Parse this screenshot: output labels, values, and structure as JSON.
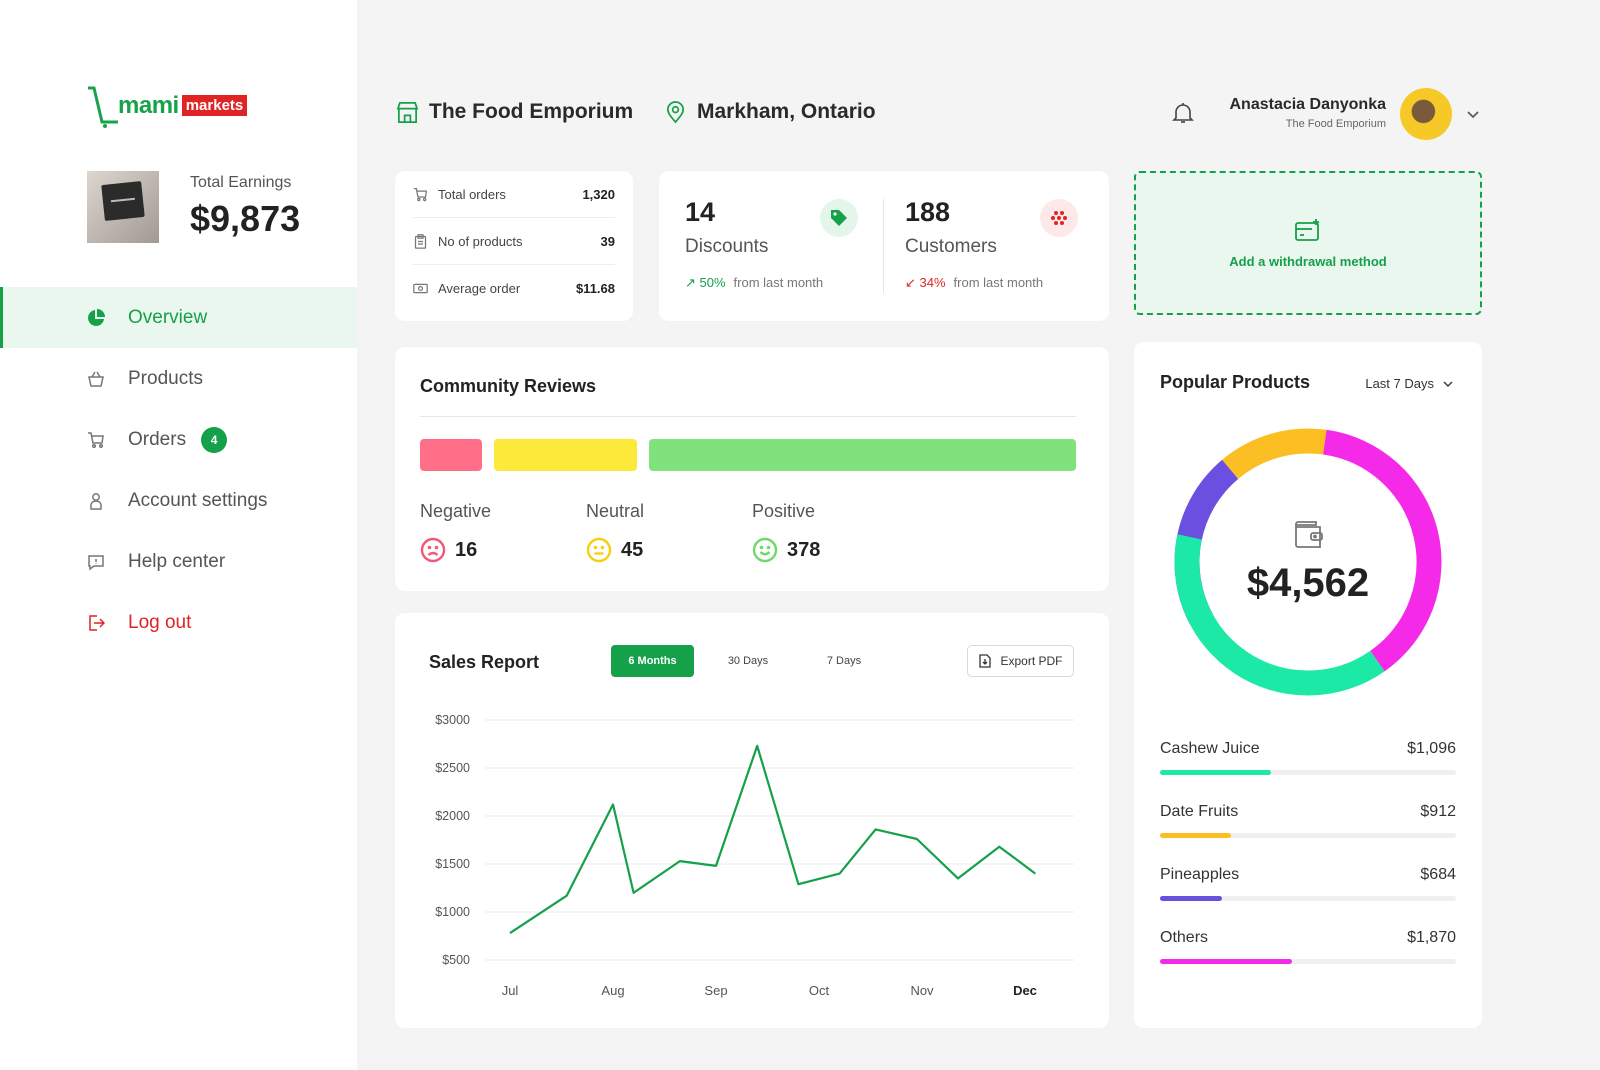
{
  "brand": {
    "part1": "mami",
    "part2": "markets"
  },
  "earnings": {
    "label": "Total Earnings",
    "value": "$9,873"
  },
  "nav": [
    {
      "label": "Overview",
      "icon": "pie-chart-icon",
      "active": true
    },
    {
      "label": "Products",
      "icon": "basket-icon"
    },
    {
      "label": "Orders",
      "icon": "cart-icon",
      "badge": "4"
    },
    {
      "label": "Account settings",
      "icon": "user-icon"
    },
    {
      "label": "Help center",
      "icon": "help-chat-icon"
    },
    {
      "label": "Log out",
      "icon": "logout-icon"
    }
  ],
  "header": {
    "store": "The Food Emporium",
    "location": "Markham, Ontario",
    "user_name": "Anastacia Danyonka",
    "user_store": "The Food Emporium"
  },
  "stats": [
    {
      "label": "Total orders",
      "value": "1,320",
      "icon": "cart-icon"
    },
    {
      "label": "No of products",
      "value": "39",
      "icon": "clipboard-icon"
    },
    {
      "label": "Average order",
      "value": "$11.68",
      "icon": "cash-icon"
    }
  ],
  "kpis": [
    {
      "value": "14",
      "label": "Discounts",
      "trend": "50%",
      "trend_dir": "up",
      "trend_text": "from last month",
      "icon": "tag-icon",
      "color": "#15a04a"
    },
    {
      "value": "188",
      "label": "Customers",
      "trend": "34%",
      "trend_dir": "down",
      "trend_text": "from last month",
      "icon": "dots-icon",
      "color": "#e02424"
    }
  ],
  "withdraw": {
    "label": "Add a withdrawal method"
  },
  "reviews": {
    "title": "Community Reviews",
    "items": [
      {
        "label": "Negative",
        "value": "16",
        "color": "#ff7088"
      },
      {
        "label": "Neutral",
        "value": "45",
        "color": "#fde93a"
      },
      {
        "label": "Positive",
        "value": "378",
        "color": "#7fe27a"
      }
    ]
  },
  "sales": {
    "title": "Sales Report",
    "tabs": [
      "6 Months",
      "30 Days",
      "7 Days"
    ],
    "export_label": "Export PDF"
  },
  "chart_data": {
    "type": "line",
    "title": "Sales Report",
    "categories": [
      "Jul",
      "Aug",
      "Sep",
      "Oct",
      "Nov",
      "Dec"
    ],
    "yticks": [
      "$3000",
      "$2500",
      "$2000",
      "$1500",
      "$1000",
      "$500"
    ],
    "ylim": [
      500,
      3000
    ],
    "x": [
      0,
      0.55,
      1,
      1.2,
      1.65,
      2,
      2.4,
      2.8,
      3.2,
      3.55,
      3.95,
      4.35,
      4.75,
      5.1
    ],
    "values": [
      780,
      1170,
      2120,
      1200,
      1530,
      1480,
      2730,
      1290,
      1400,
      1860,
      1760,
      1350,
      1680,
      1400
    ],
    "series": [
      {
        "values": [
          780,
          1170,
          2120,
          1200,
          1530,
          1480,
          2730,
          1290,
          1400,
          1860,
          1760,
          1350,
          1680,
          1400
        ],
        "color": "#15a04a"
      }
    ],
    "grid": true,
    "highlight_category": "Dec"
  },
  "popular": {
    "title": "Popular Products",
    "range": "Last 7 Days",
    "total": "$4,562",
    "products": [
      {
        "name": "Cashew Juice",
        "value": "$1,096",
        "amount": 1096,
        "color": "#1de9a6"
      },
      {
        "name": "Date Fruits",
        "value": "$912",
        "amount": 912,
        "color": "#fbbf24"
      },
      {
        "name": "Pineapples",
        "value": "$684",
        "amount": 684,
        "color": "#6a4fe0"
      },
      {
        "name": "Others",
        "value": "$1,870",
        "amount": 1870,
        "color": "#f529e8"
      }
    ]
  }
}
